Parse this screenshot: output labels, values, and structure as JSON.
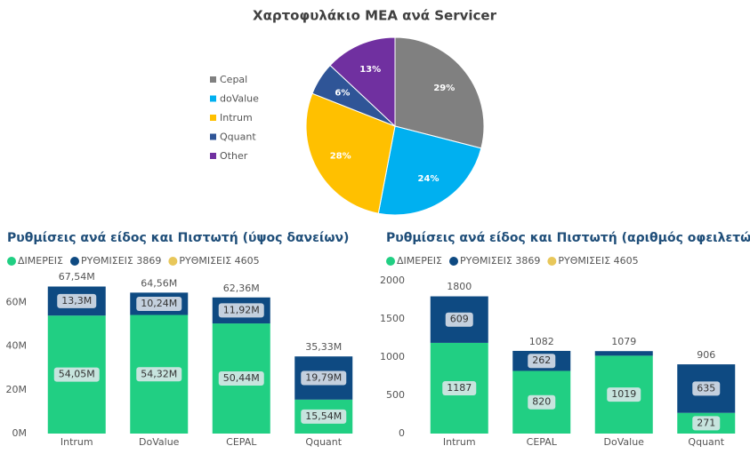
{
  "chart_data": [
    {
      "type": "pie",
      "title": "Χαρτοφυλάκιο ΜΕΑ ανά Servicer",
      "categories": [
        "Cepal",
        "doValue",
        "Intrum",
        "Qquant",
        "Other"
      ],
      "values": [
        29,
        24,
        28,
        6,
        13
      ],
      "value_labels": [
        "29%",
        "24%",
        "28%",
        "6%",
        "13%"
      ],
      "colors": [
        "#808080",
        "#00b0f0",
        "#ffc000",
        "#2f5597",
        "#7030a0"
      ],
      "legend": "left"
    },
    {
      "type": "bar",
      "title": "Ρυθμίσεις ανά είδος και Πιστωτή (ύψος δανείων)",
      "categories": [
        "Intrum",
        "DoValue",
        "CEPAL",
        "Qquant"
      ],
      "series": [
        {
          "name": "ΔΙΜΕΡΕΙΣ",
          "color": "#21cf83",
          "values": [
            54.05,
            54.32,
            50.44,
            15.54
          ],
          "value_labels": [
            "54,05M",
            "54,32M",
            "50,44M",
            "15,54M"
          ]
        },
        {
          "name": "ΡΥΘΜΙΣΕΙΣ 3869",
          "color": "#0e4a82",
          "values": [
            13.3,
            10.24,
            11.92,
            19.79
          ],
          "value_labels": [
            "13,3M",
            "10,24M",
            "11,92M",
            "19,79M"
          ]
        },
        {
          "name": "ΡΥΘΜΙΣΕΙΣ 4605",
          "color": "#e8c75a",
          "values": [
            null,
            null,
            null,
            null
          ]
        }
      ],
      "totals": [
        67.54,
        64.56,
        62.36,
        35.33
      ],
      "total_labels": [
        "67,54M",
        "64,56M",
        "62,36M",
        "35,33M"
      ],
      "ylim": [
        0,
        70
      ],
      "yticks": [
        {
          "value": 0,
          "label": "0M"
        },
        {
          "value": 20,
          "label": "20M"
        },
        {
          "value": 40,
          "label": "40M"
        },
        {
          "value": 60,
          "label": "60M"
        }
      ],
      "stacked": true,
      "legend": "top-left"
    },
    {
      "type": "bar",
      "title": "Ρυθμίσεις ανά είδος και Πιστωτή (αριθμός οφειλετών)",
      "categories": [
        "Intrum",
        "CEPAL",
        "DoValue",
        "Qquant"
      ],
      "series": [
        {
          "name": "ΔΙΜΕΡΕΙΣ",
          "color": "#21cf83",
          "values": [
            1187,
            820,
            1019,
            271
          ]
        },
        {
          "name": "ΡΥΘΜΙΣΕΙΣ 3869",
          "color": "#0e4a82",
          "values": [
            609,
            262,
            60,
            635
          ]
        },
        {
          "name": "ΡΥΘΜΙΣΕΙΣ 4605",
          "color": "#e8c75a",
          "values": [
            null,
            null,
            null,
            null
          ]
        }
      ],
      "totals": [
        1800,
        1082,
        1079,
        906
      ],
      "ylim": [
        0,
        2000
      ],
      "yticks": [
        0,
        500,
        1000,
        1500,
        2000
      ],
      "stacked": true,
      "legend": "top-left"
    }
  ]
}
